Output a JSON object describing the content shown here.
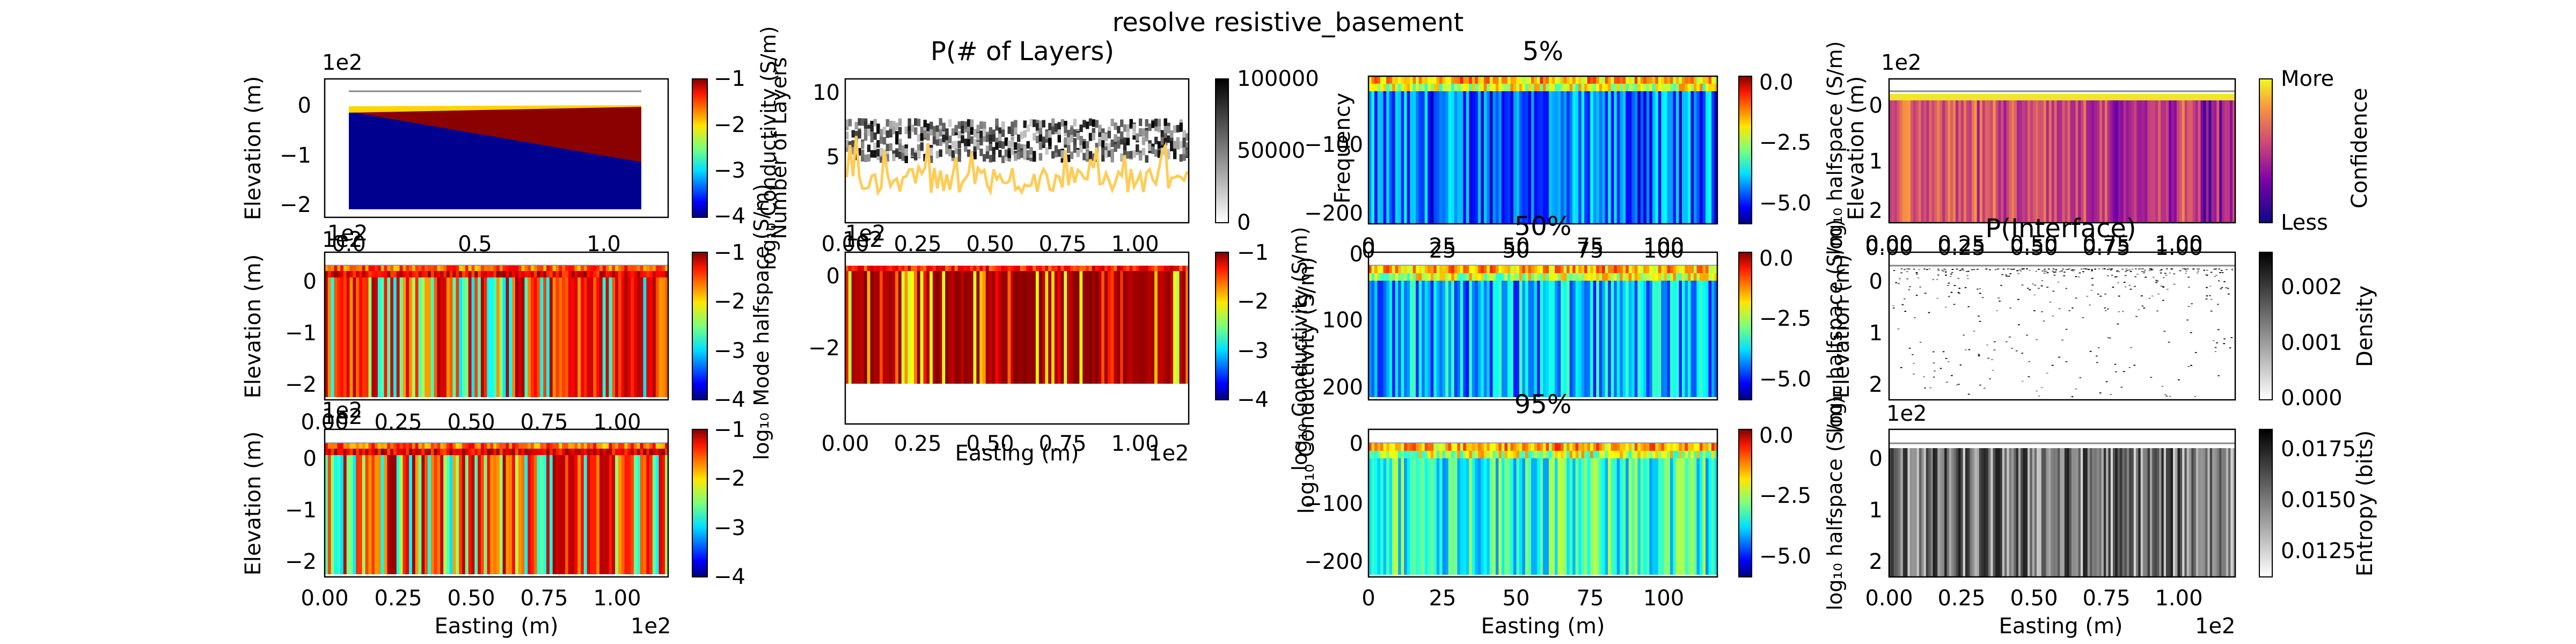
{
  "figure": {
    "title": "resolve resistive_basement"
  },
  "scale": {
    "exp": "1e2"
  },
  "labels": {
    "elevation": "Elevation (m)",
    "easting": "Easting (m)",
    "frequency": "Frequency",
    "cond_cb": "log₁₀ Conductivity (S/m)",
    "mode_cb": "log₁₀ Mode halfspace (S/m)",
    "nlayers_cb": "Number of Layers",
    "conductivity": "log₁₀ Conductivity (S/m)",
    "halfspace": "log₁₀ halfspace (S/m)",
    "confidence": "Confidence",
    "density": "Density",
    "entropy": "Entropy (bits)"
  },
  "panels": {
    "p_layers": {
      "title": "P(# of Layers)"
    },
    "p5": {
      "title": "5%"
    },
    "p50": {
      "title": "50%"
    },
    "p95": {
      "title": "95%"
    },
    "pint": {
      "title": "P(Interface)"
    }
  },
  "colorbar": {
    "more": "More",
    "less": "Less"
  },
  "chart_data": [
    {
      "type": "heatmap",
      "panel": "model_true",
      "title": "",
      "xlabel": "",
      "ylabel": "Elevation (m)",
      "x_ticks": [
        "0.0",
        "0.5",
        "1.0"
      ],
      "y_ticks": [
        "0",
        "−1",
        "−2"
      ],
      "x_scale": "1e2",
      "y_scale": "1e2",
      "xlim": [
        0,
        1.1
      ],
      "ylim": [
        -2.3,
        0.3
      ],
      "colorbar": {
        "label": "log₁₀ Conductivity (S/m)",
        "ticks": [
          "−1",
          "−2",
          "−3",
          "−4"
        ],
        "range": [
          -4,
          -1
        ]
      }
    },
    {
      "type": "heatmap",
      "panel": "n_layers_posterior",
      "title": "P(# of Layers)",
      "xlabel": "",
      "ylabel": "",
      "x_ticks": [
        "0.00",
        "0.25",
        "0.50",
        "0.75",
        "1.00"
      ],
      "y_ticks": [
        "5",
        "10"
      ],
      "x_scale": "1e2",
      "colorbar": {
        "label": "",
        "ticks": [
          "100000",
          "50000",
          "0"
        ],
        "range": [
          0,
          100000
        ]
      }
    },
    {
      "type": "heatmap",
      "panel": "percentile_5",
      "title": "5%",
      "xlabel": "",
      "ylabel": "Frequency",
      "x_ticks": [
        "0",
        "25",
        "50",
        "75",
        "100"
      ],
      "y_ticks": [
        "−100",
        "−200"
      ],
      "xlim": [
        0,
        118
      ],
      "ylim": [
        -215,
        0
      ],
      "colorbar": {
        "label": "",
        "ticks": [
          "0.0",
          "−2.5",
          "−5.0"
        ],
        "range": [
          -5.8,
          0.3
        ]
      }
    },
    {
      "type": "heatmap",
      "panel": "confidence",
      "title": "",
      "xlabel": "",
      "ylabel": "Elevation (m)",
      "x_ticks": [
        "0.00",
        "0.25",
        "0.50",
        "0.75",
        "1.00"
      ],
      "y_ticks": [
        "0",
        "1",
        "2"
      ],
      "y_scale": "1e2",
      "colorbar": {
        "label": "Confidence",
        "ticks": [
          "More",
          "Less"
        ]
      }
    },
    {
      "type": "heatmap",
      "panel": "mean_conductivity",
      "title": "",
      "xlabel": "",
      "ylabel": "Elevation (m)",
      "x_ticks": [
        "0.00",
        "0.25",
        "0.50",
        "0.75",
        "1.00"
      ],
      "y_ticks": [
        "0",
        "−1",
        "−2"
      ],
      "x_scale": "1e2",
      "y_scale": "1e2",
      "colorbar": {
        "label": "",
        "ticks": [
          "−1",
          "−2",
          "−3",
          "−4"
        ],
        "range": [
          -4,
          -1
        ]
      }
    },
    {
      "type": "heatmap",
      "panel": "mean_halfspace",
      "title": "",
      "xlabel": "Easting (m)",
      "ylabel": "",
      "x_ticks": [
        "0.00",
        "0.25",
        "0.50",
        "0.75",
        "1.00"
      ],
      "y_ticks": [
        "0",
        "−2"
      ],
      "x_scale": "1e2",
      "colorbar": {
        "label": "log₁₀ Conductivity (S/m)",
        "ticks": [
          "−1",
          "−2",
          "−3",
          "−4"
        ],
        "range": [
          -4,
          -1
        ]
      }
    },
    {
      "type": "heatmap",
      "panel": "percentile_50",
      "title": "50%",
      "xlabel": "",
      "ylabel": "",
      "x_ticks": [
        "0",
        "25",
        "50",
        "75",
        "100"
      ],
      "y_ticks": [
        "0",
        "100",
        "200"
      ],
      "colorbar": {
        "label": "",
        "ticks": [
          "0.0",
          "−2.5",
          "−5.0"
        ],
        "range": [
          -5.8,
          0.3
        ]
      }
    },
    {
      "type": "heatmap",
      "panel": "interface_probability",
      "title": "P(Interface)",
      "xlabel": "",
      "ylabel": "Elevation (m)",
      "x_ticks": [
        "0.00",
        "0.25",
        "0.50",
        "0.75",
        "1.00"
      ],
      "y_ticks": [
        "0",
        "1",
        "2"
      ],
      "y_scale": "1e2",
      "colorbar": {
        "label": "Density",
        "ticks": [
          "0.002",
          "0.001",
          "0.000"
        ],
        "range": [
          0,
          0.0028
        ]
      }
    },
    {
      "type": "heatmap",
      "panel": "mode_halfspace",
      "title": "",
      "xlabel": "Easting (m)",
      "ylabel": "Elevation (m)",
      "x_ticks": [
        "0.00",
        "0.25",
        "0.50",
        "0.75",
        "1.00"
      ],
      "y_ticks": [
        "0",
        "−1",
        "−2"
      ],
      "x_scale": "1e2",
      "y_scale": "1e2",
      "colorbar": {
        "label": "log₁₀ Mode halfspace (S/m)",
        "ticks": [
          "−1",
          "−2",
          "−3",
          "−4"
        ],
        "range": [
          -4,
          -1
        ]
      }
    },
    {
      "type": "heatmap",
      "panel": "percentile_95",
      "title": "95%",
      "xlabel": "Easting (m)",
      "ylabel": "",
      "x_ticks": [
        "0",
        "25",
        "50",
        "75",
        "100"
      ],
      "y_ticks": [
        "0",
        "−100",
        "−200"
      ],
      "colorbar": {
        "label": "",
        "ticks": [
          "0.0",
          "−2.5",
          "−5.0"
        ],
        "range": [
          -5.8,
          0.3
        ]
      }
    },
    {
      "type": "heatmap",
      "panel": "entropy",
      "title": "",
      "xlabel": "Easting (m)",
      "ylabel": "",
      "x_ticks": [
        "0.00",
        "0.25",
        "0.50",
        "0.75",
        "1.00"
      ],
      "y_ticks": [
        "0",
        "1",
        "2"
      ],
      "x_scale": "1e2",
      "y_scale": "1e2",
      "colorbar": {
        "label": "Entropy (bits)",
        "ticks": [
          "0.0175",
          "0.0150",
          "0.0125"
        ],
        "range": [
          0.0118,
          0.019
        ]
      }
    }
  ]
}
